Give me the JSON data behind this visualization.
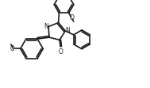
{
  "bg_color": "#ffffff",
  "line_color": "#1a1a1a",
  "line_width": 1.2,
  "figsize": [
    1.89,
    1.11
  ],
  "dpi": 100,
  "xlim": [
    0,
    9.5
  ],
  "ylim": [
    0,
    5.6
  ]
}
